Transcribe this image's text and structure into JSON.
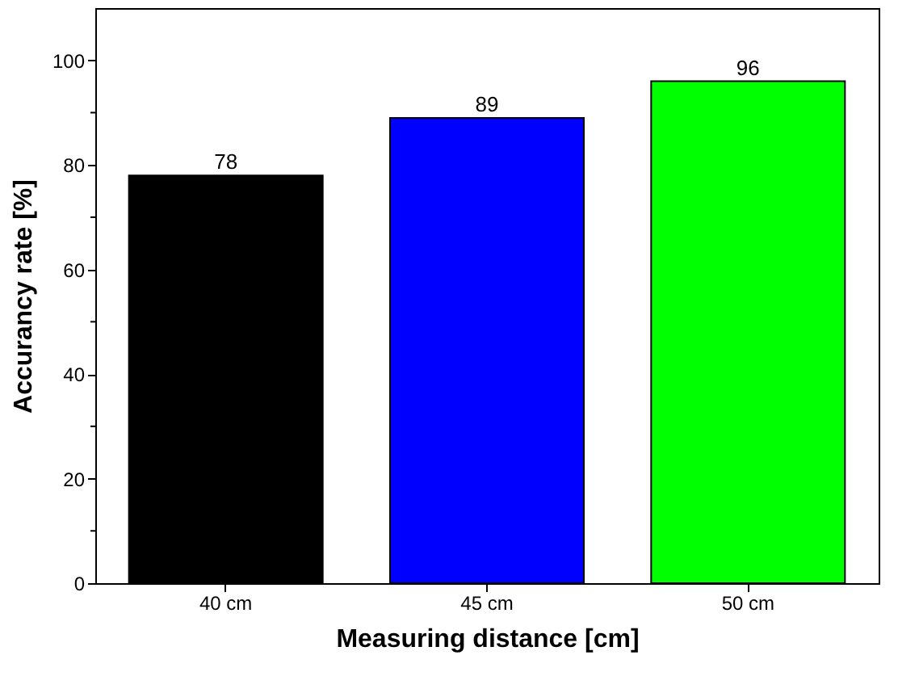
{
  "chart_data": {
    "type": "bar",
    "xlabel": "Measuring distance [cm]",
    "ylabel": "Accurancy rate [%]",
    "categories": [
      "40 cm",
      "45 cm",
      "50 cm"
    ],
    "values": [
      78,
      89,
      96
    ],
    "colors": [
      "#000000",
      "#0000ff",
      "#00ff00"
    ],
    "ylim": [
      0,
      110
    ],
    "yticks": [
      0,
      {
        "value": 10,
        "label": null
      },
      20,
      {
        "value": 30,
        "label": null
      },
      40,
      {
        "value": 50,
        "label": null
      },
      60,
      {
        "value": 70,
        "label": null
      },
      80,
      {
        "value": 90,
        "label": null
      },
      100
    ],
    "data_labels": true,
    "grid": false
  }
}
